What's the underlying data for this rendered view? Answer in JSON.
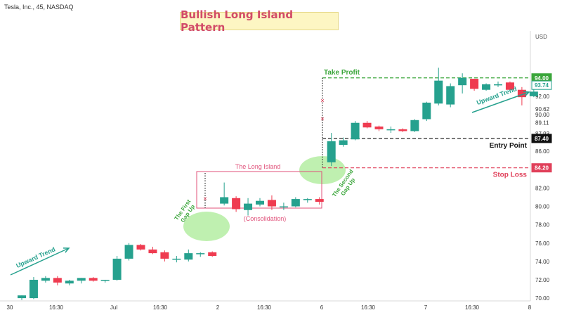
{
  "symbol_label": "Tesla, Inc., 45, NASDAQ",
  "colors": {
    "bull": "#26a18e",
    "bear": "#ef3b50",
    "green_text": "#3ba63b",
    "red_text": "#e0405a",
    "pink": "#e0517a",
    "ellipse": "#bff0b0",
    "title_bg": "#fdf6c3"
  },
  "chart_data": {
    "type": "candlestick",
    "title": "Bullish Long Island Pattern",
    "currency": "USD",
    "ylim": [
      69.7,
      98.5
    ],
    "y_ticks": [
      70.0,
      72.0,
      74.0,
      76.0,
      78.0,
      80.0,
      82.0,
      86.0,
      87.19,
      87.93,
      89.11,
      90.0,
      90.62,
      92.0
    ],
    "x_ticks": [
      "30",
      "16:30",
      "Jul",
      "16:30",
      "2",
      "16:30",
      "6",
      "16:30",
      "7",
      "16:30",
      "8"
    ],
    "candles": [
      {
        "o": 70.0,
        "h": 70.3,
        "l": 69.8,
        "c": 70.3
      },
      {
        "o": 70.0,
        "h": 72.3,
        "l": 69.9,
        "c": 72.0
      },
      {
        "o": 71.9,
        "h": 72.4,
        "l": 71.7,
        "c": 72.2
      },
      {
        "o": 72.2,
        "h": 72.4,
        "l": 71.4,
        "c": 71.7
      },
      {
        "o": 71.6,
        "h": 72.0,
        "l": 71.4,
        "c": 71.9
      },
      {
        "o": 71.9,
        "h": 72.2,
        "l": 71.6,
        "c": 72.2
      },
      {
        "o": 72.2,
        "h": 72.3,
        "l": 71.8,
        "c": 71.9
      },
      {
        "o": 71.9,
        "h": 72.0,
        "l": 71.7,
        "c": 72.0
      },
      {
        "o": 72.0,
        "h": 74.6,
        "l": 71.9,
        "c": 74.3
      },
      {
        "o": 74.3,
        "h": 76.0,
        "l": 74.1,
        "c": 75.8
      },
      {
        "o": 75.8,
        "h": 75.9,
        "l": 75.2,
        "c": 75.3
      },
      {
        "o": 75.3,
        "h": 75.6,
        "l": 74.8,
        "c": 74.9
      },
      {
        "o": 75.0,
        "h": 75.2,
        "l": 74.0,
        "c": 74.3
      },
      {
        "o": 74.2,
        "h": 74.6,
        "l": 73.9,
        "c": 74.3
      },
      {
        "o": 74.2,
        "h": 75.3,
        "l": 74.0,
        "c": 74.9
      },
      {
        "o": 74.8,
        "h": 75.0,
        "l": 74.5,
        "c": 74.9
      },
      {
        "o": 75.0,
        "h": 75.1,
        "l": 74.5,
        "c": 74.6
      },
      {
        "o": 80.3,
        "h": 82.6,
        "l": 80.1,
        "c": 81.0
      },
      {
        "o": 80.9,
        "h": 81.1,
        "l": 79.4,
        "c": 79.7
      },
      {
        "o": 79.6,
        "h": 80.9,
        "l": 79.0,
        "c": 80.3
      },
      {
        "o": 80.2,
        "h": 80.9,
        "l": 80.0,
        "c": 80.6
      },
      {
        "o": 80.7,
        "h": 81.2,
        "l": 79.6,
        "c": 80.0
      },
      {
        "o": 79.9,
        "h": 80.4,
        "l": 79.6,
        "c": 80.0
      },
      {
        "o": 80.0,
        "h": 81.0,
        "l": 79.9,
        "c": 80.8
      },
      {
        "o": 80.7,
        "h": 80.9,
        "l": 80.4,
        "c": 80.8
      },
      {
        "o": 80.8,
        "h": 81.0,
        "l": 80.2,
        "c": 80.5
      },
      {
        "o": 84.8,
        "h": 88.0,
        "l": 84.4,
        "c": 87.1
      },
      {
        "o": 86.7,
        "h": 87.5,
        "l": 86.5,
        "c": 87.2
      },
      {
        "o": 87.3,
        "h": 89.3,
        "l": 87.2,
        "c": 89.1
      },
      {
        "o": 89.1,
        "h": 89.3,
        "l": 88.5,
        "c": 88.6
      },
      {
        "o": 88.7,
        "h": 88.8,
        "l": 88.2,
        "c": 88.4
      },
      {
        "o": 88.3,
        "h": 88.7,
        "l": 88.0,
        "c": 88.4
      },
      {
        "o": 88.4,
        "h": 88.5,
        "l": 88.1,
        "c": 88.2
      },
      {
        "o": 88.2,
        "h": 89.5,
        "l": 88.1,
        "c": 89.4
      },
      {
        "o": 89.5,
        "h": 91.4,
        "l": 89.3,
        "c": 91.3
      },
      {
        "o": 91.2,
        "h": 95.1,
        "l": 91.0,
        "c": 93.7
      },
      {
        "o": 91.1,
        "h": 93.4,
        "l": 90.8,
        "c": 93.1
      },
      {
        "o": 93.2,
        "h": 94.5,
        "l": 92.3,
        "c": 94.0
      },
      {
        "o": 93.9,
        "h": 93.9,
        "l": 92.6,
        "c": 92.8
      },
      {
        "o": 92.7,
        "h": 93.4,
        "l": 92.6,
        "c": 93.3
      },
      {
        "o": 93.2,
        "h": 93.6,
        "l": 93.0,
        "c": 93.3
      },
      {
        "o": 93.5,
        "h": 93.6,
        "l": 92.5,
        "c": 92.7
      },
      {
        "o": 92.7,
        "h": 93.0,
        "l": 91.0,
        "c": 91.9
      },
      {
        "o": 92.0,
        "h": 93.8,
        "l": 91.9,
        "c": 92.5
      }
    ],
    "levels": [
      {
        "name": "Take Profit",
        "value": 94.0,
        "tag": "94.00",
        "color": "green",
        "style": "dashed"
      },
      {
        "name": "Entry Point",
        "value": 87.4,
        "tag": "87.40",
        "color": "black",
        "style": "dashed"
      },
      {
        "name": "Stop Loss",
        "value": 84.2,
        "tag": "84.20",
        "color": "red",
        "style": "dashed"
      }
    ],
    "last_price_tag": "93.74",
    "annotations": {
      "upward_trend_left": "Upward Trend",
      "upward_trend_right": "Upward Trend",
      "first_gap_line1": "The First",
      "first_gap_line2": "Gap Up",
      "second_gap_line1": "The Second",
      "second_gap_line2": "Gap Up",
      "island_label": "The Long Island",
      "consolidation_label": "(Consolidation)"
    }
  }
}
